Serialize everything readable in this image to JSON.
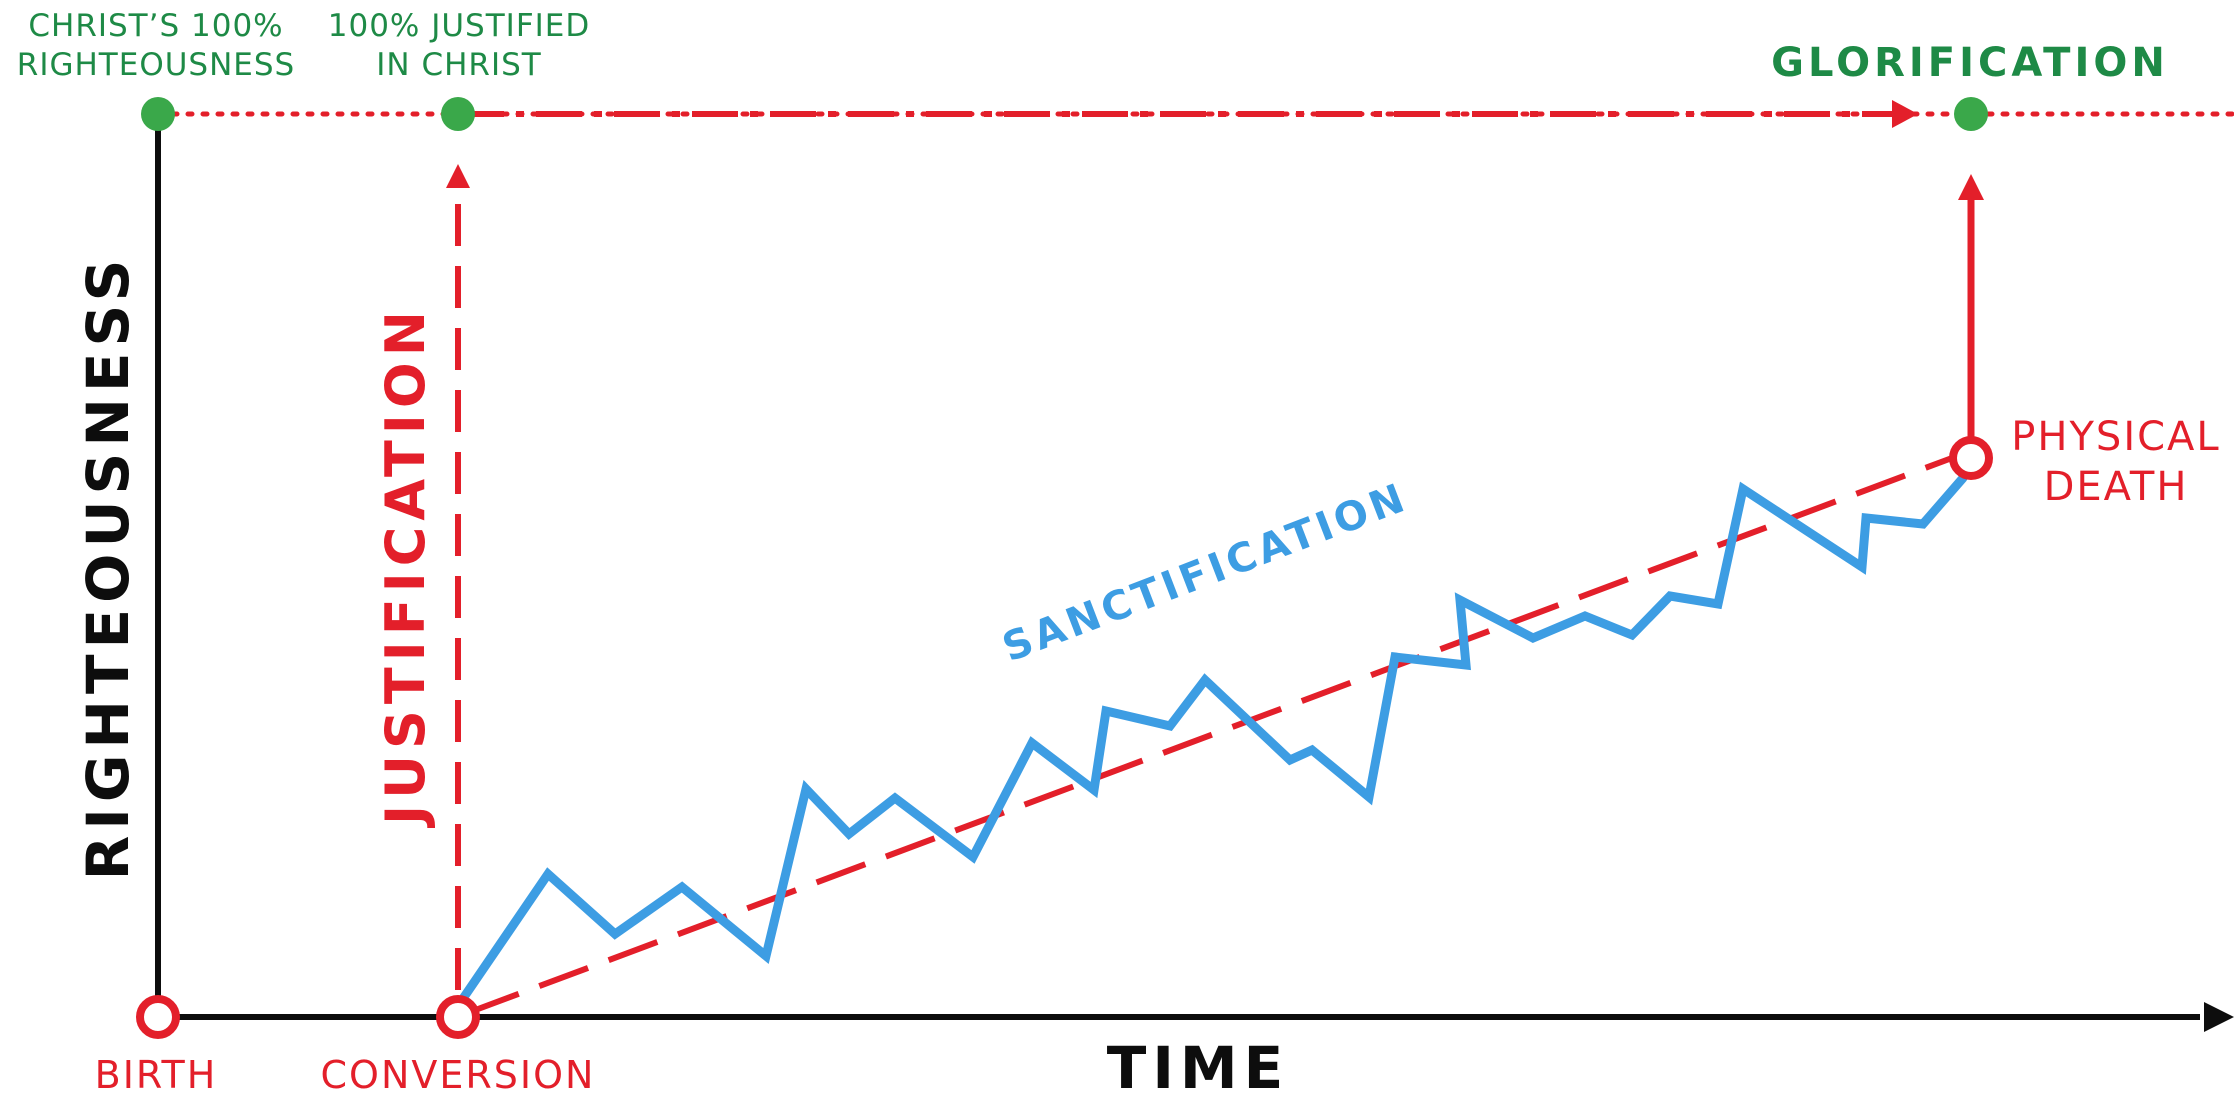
{
  "labels": {
    "christs_righteousness_line1": "CHRIST’S 100%",
    "christs_righteousness_line2": "RIGHTEOUSNESS",
    "justified_line1": "100% JUSTIFIED",
    "justified_line2": "IN CHRIST",
    "glorification": "GLORIFICATION",
    "y_axis": "RIGHTEOUSNESS",
    "x_axis": "TIME",
    "justification": "JUSTIFICATION",
    "sanctification": "SANCTIFICATION",
    "physical_death_line1": "PHYSICAL",
    "physical_death_line2": "DEATH",
    "birth": "BIRTH",
    "conversion": "CONVERSION"
  },
  "colors": {
    "axis": "#0d0d0d",
    "red": "#e31f2a",
    "green": "#3aa84a",
    "green_text": "#1e8a46",
    "blue": "#3d9de3"
  }
}
